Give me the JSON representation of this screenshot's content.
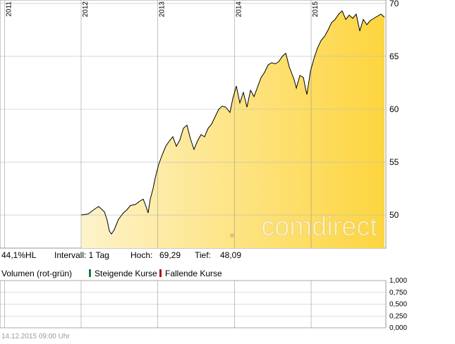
{
  "chart_data": [
    {
      "type": "line",
      "x": [
        2012.0,
        2012.092,
        2012.184,
        2012.23,
        2012.304,
        2012.34,
        2012.368,
        2012.396,
        2012.432,
        2012.488,
        2012.552,
        2012.598,
        2012.644,
        2012.709,
        2012.764,
        2012.81,
        2012.847,
        2012.874,
        2012.902,
        2012.939,
        2012.966,
        2013.012,
        2013.058,
        2013.104,
        2013.15,
        2013.196,
        2013.242,
        2013.288,
        2013.334,
        2013.38,
        2013.426,
        2013.472,
        2013.518,
        2013.564,
        2013.61,
        2013.656,
        2013.702,
        2013.748,
        2013.794,
        2013.84,
        2013.886,
        2013.942,
        2013.978,
        2014.024,
        2014.07,
        2014.116,
        2014.163,
        2014.209,
        2014.255,
        2014.301,
        2014.347,
        2014.393,
        2014.439,
        2014.485,
        2014.531,
        2014.577,
        2014.623,
        2014.669,
        2014.715,
        2014.742,
        2014.779,
        2014.807,
        2014.853,
        2014.899,
        2014.926,
        2014.945,
        2014.991,
        2015.037,
        2015.083,
        2015.129,
        2015.175,
        2015.221,
        2015.267,
        2015.313,
        2015.359,
        2015.405,
        2015.451,
        2015.497,
        2015.543,
        2015.589,
        2015.635,
        2015.681,
        2015.727,
        2015.773,
        2015.819,
        2015.865,
        2015.911,
        2015.957
      ],
      "values": [
        50.0,
        50.1,
        50.6,
        50.8,
        50.3,
        49.5,
        48.5,
        48.2,
        48.6,
        49.6,
        50.2,
        50.5,
        50.9,
        51.0,
        51.3,
        51.5,
        50.8,
        50.2,
        51.5,
        52.5,
        53.5,
        54.8,
        55.7,
        56.5,
        57.0,
        57.4,
        56.5,
        57.1,
        58.2,
        58.5,
        57.2,
        56.2,
        57.0,
        57.6,
        57.4,
        58.2,
        58.6,
        59.3,
        60.0,
        60.3,
        60.2,
        59.7,
        61.0,
        62.2,
        60.6,
        61.6,
        60.2,
        61.8,
        61.2,
        62.1,
        63.0,
        63.5,
        64.2,
        64.4,
        64.3,
        64.5,
        65.0,
        65.3,
        64.0,
        63.5,
        62.8,
        62.0,
        63.2,
        63.0,
        62.0,
        61.4,
        63.6,
        64.8,
        65.8,
        66.5,
        66.9,
        67.5,
        68.2,
        68.5,
        69.0,
        69.3,
        68.5,
        68.9,
        68.6,
        69.0,
        67.4,
        68.5,
        68.0,
        68.4,
        68.6,
        68.8,
        69.0,
        68.7
      ],
      "color": "#000000",
      "fill_colors": [
        "#fdf3cb",
        "#fdd53f"
      ],
      "xlim": [
        2010.942,
        2015.975
      ],
      "xticks": [
        2011,
        2012,
        2013,
        2014,
        2015
      ],
      "ylim": [
        46.87,
        70.33
      ],
      "yticks": [
        50,
        55,
        60,
        65,
        70
      ],
      "grid": true,
      "watermark": "comdirect"
    },
    {
      "type": "bar",
      "title": "Volumen (rot-grün)",
      "legend": [
        {
          "name": "Steigende Kurse",
          "color": "#1b7a3a"
        },
        {
          "name": "Fallende Kurse",
          "color": "#b01010"
        }
      ],
      "ylim": [
        0,
        1
      ],
      "yticks": [
        {
          "value": 1,
          "label": "1,000"
        },
        {
          "value": 0.75,
          "label": "0,750"
        },
        {
          "value": 0.5,
          "label": "0,500"
        },
        {
          "value": 0.25,
          "label": "0,250"
        },
        {
          "value": 0,
          "label": "0,000"
        }
      ],
      "xlim": [
        2010.942,
        2015.975
      ],
      "xticks": [
        2011,
        2012,
        2013,
        2014,
        2015
      ],
      "grid": true
    }
  ],
  "info": {
    "range": "44,1%HL",
    "interval": "Intervall: 1 Tag",
    "high_label": "Hoch:",
    "high": "69,29",
    "low_label": "Tief:",
    "low": "48,09"
  },
  "footer": "14.12.2015 09:00 Uhr"
}
